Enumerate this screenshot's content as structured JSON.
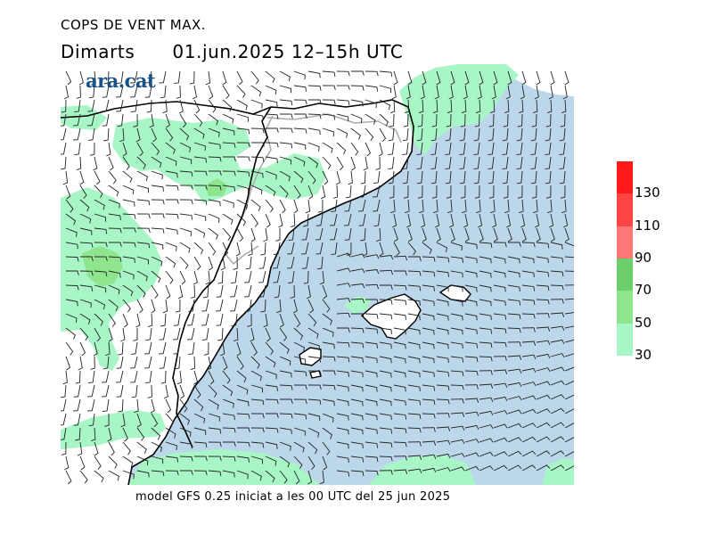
{
  "header": {
    "title": "COPS DE VENT MAX.",
    "day": "Dimarts",
    "datetime": "01.jun.2025 12–15h UTC"
  },
  "logo": {
    "text": "ara.cat",
    "color": "#17518a"
  },
  "legend": {
    "unit_values": [
      "30",
      "50",
      "70",
      "90",
      "110",
      "130"
    ],
    "bins": [
      {
        "from": 30,
        "to": 50,
        "color": "#a8f5c6"
      },
      {
        "from": 50,
        "to": 70,
        "color": "#8ee58e"
      },
      {
        "from": 70,
        "to": 90,
        "color": "#6ccf6c"
      },
      {
        "from": 90,
        "to": 110,
        "color": "#ff7878"
      },
      {
        "from": 110,
        "to": 130,
        "color": "#ff4444"
      },
      {
        "from": 130,
        "to": 150,
        "color": "#ff1a1a"
      }
    ]
  },
  "map": {
    "sea_color": "#bcd7ea",
    "land_color": "#ffffff",
    "coast_color": "#000000",
    "border_color": "#aaaaaa"
  },
  "footer": {
    "text": "model GFS 0.25 iniciat a les 00 UTC del 25 jun 2025"
  }
}
